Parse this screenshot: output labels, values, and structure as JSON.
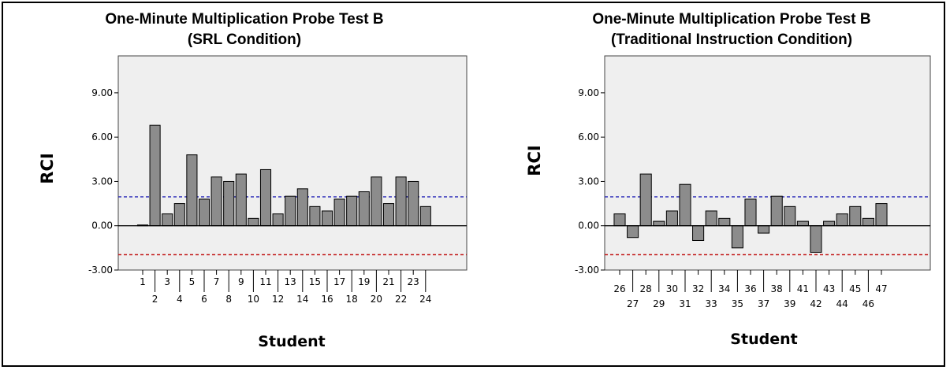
{
  "chart_data": [
    {
      "type": "bar",
      "title": "One-Minute Multiplication Probe Test B",
      "subtitle": "(SRL Condition)",
      "xlabel": "Student",
      "ylabel": "RCI",
      "ylim": [
        -3,
        11.5
      ],
      "yticks": [
        -3,
        0,
        3,
        6,
        9
      ],
      "ytick_labels": [
        "-3.00",
        "0.00",
        "3.00",
        "6.00",
        "9.00"
      ],
      "reference_lines": [
        {
          "value": 1.96,
          "color": "#2b2bb8",
          "style": "dashed"
        },
        {
          "value": -1.96,
          "color": "#c42020",
          "style": "dashed"
        }
      ],
      "categories": [
        "1",
        "2",
        "3",
        "4",
        "5",
        "6",
        "7",
        "8",
        "9",
        "10",
        "11",
        "12",
        "13",
        "14",
        "15",
        "16",
        "17",
        "18",
        "19",
        "20",
        "21",
        "22",
        "23",
        "24"
      ],
      "values": [
        0.05,
        6.8,
        0.8,
        1.5,
        4.8,
        1.8,
        3.3,
        3.0,
        3.5,
        0.5,
        3.8,
        0.8,
        2.0,
        2.5,
        1.3,
        1.0,
        1.8,
        2.0,
        2.3,
        3.3,
        1.5,
        3.3,
        3.0,
        1.3
      ],
      "bar_color": "#8c8c8c",
      "background": "#efefef",
      "grid": false
    },
    {
      "type": "bar",
      "title": "One-Minute Multiplication Probe Test B",
      "subtitle": "(Traditional Instruction Condition)",
      "xlabel": "Student",
      "ylabel": "RCI",
      "ylim": [
        -3,
        11.5
      ],
      "yticks": [
        -3,
        0,
        3,
        6,
        9
      ],
      "ytick_labels": [
        "-3.00",
        "0.00",
        "3.00",
        "6.00",
        "9.00"
      ],
      "reference_lines": [
        {
          "value": 1.96,
          "color": "#2b2bb8",
          "style": "dashed"
        },
        {
          "value": -1.96,
          "color": "#c42020",
          "style": "dashed"
        }
      ],
      "categories": [
        "26",
        "27",
        "28",
        "29",
        "30",
        "31",
        "32",
        "33",
        "34",
        "35",
        "36",
        "37",
        "38",
        "39",
        "41",
        "42",
        "43",
        "44",
        "45",
        "46",
        "47"
      ],
      "values": [
        0.8,
        -0.8,
        3.5,
        0.3,
        1.0,
        2.8,
        -1.0,
        1.0,
        0.5,
        -1.5,
        1.8,
        -0.5,
        2.0,
        1.3,
        0.3,
        -1.8,
        0.3,
        0.8,
        1.3,
        0.5,
        1.5
      ],
      "bar_color": "#8c8c8c",
      "background": "#efefef",
      "grid": false
    }
  ]
}
